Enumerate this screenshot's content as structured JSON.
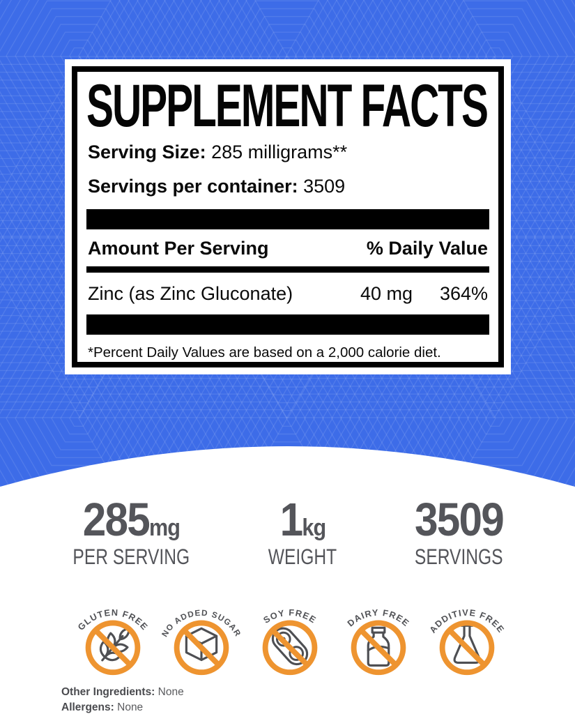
{
  "colors": {
    "background_blue": "#3D6CE8",
    "badge_orange": "#EE9430",
    "stat_gray": "#54555A",
    "panel_black": "#000000"
  },
  "facts_panel": {
    "title": "SUPPLEMENT FACTS",
    "serving_size_label": "Serving Size:",
    "serving_size_value": "285 milligrams**",
    "servings_per_container_label": "Servings per container:",
    "servings_per_container_value": "3509",
    "amount_per_serving_header": "Amount Per Serving",
    "daily_value_header": "% Daily Value",
    "nutrients": [
      {
        "name": "Zinc (as Zinc Gluconate)",
        "amount": "40 mg",
        "daily_value": "364%"
      }
    ],
    "footnote": "*Percent Daily Values are based on a 2,000 calorie diet."
  },
  "stats": [
    {
      "value": "285",
      "unit": "mg",
      "label": "PER SERVING"
    },
    {
      "value": "1",
      "unit": "kg",
      "label": "WEIGHT"
    },
    {
      "value": "3509",
      "unit": "",
      "label": "SERVINGS"
    }
  ],
  "badges": [
    {
      "label": "GLUTEN FREE",
      "icon": "wheat-icon"
    },
    {
      "label": "NO ADDED SUGAR",
      "icon": "sugar-cube-icon"
    },
    {
      "label": "SOY FREE",
      "icon": "soybean-icon"
    },
    {
      "label": "DAIRY FREE",
      "icon": "milk-bottle-icon"
    },
    {
      "label": "ADDITIVE FREE",
      "icon": "flask-icon"
    }
  ],
  "additional_info": {
    "other_ingredients_label": "Other Ingredients:",
    "other_ingredients_value": "None",
    "allergens_label": "Allergens:",
    "allergens_value": "None"
  }
}
